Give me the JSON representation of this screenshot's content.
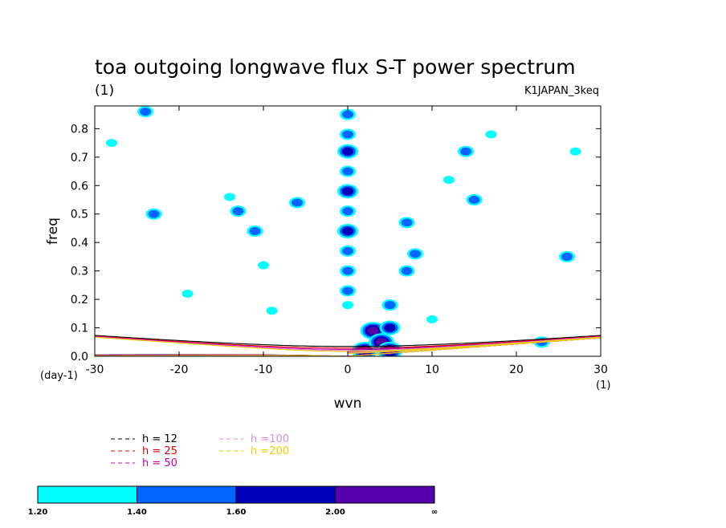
{
  "chart_data": {
    "type": "heatmap",
    "title": "toa outgoing longwave flux S-T power spectrum",
    "subtitle_left": "(1)",
    "subtitle_right": "K1JAPAN_3keq",
    "xlabel": "wvn",
    "ylabel": "freq",
    "x_unit": "(1)",
    "y_unit": "(day-1)",
    "xlim": [
      -30,
      30
    ],
    "ylim": [
      0,
      0.88
    ],
    "x_ticks": [
      -30,
      -20,
      -10,
      0,
      10,
      20,
      30
    ],
    "y_ticks": [
      0.0,
      0.1,
      0.2,
      0.3,
      0.4,
      0.5,
      0.6,
      0.7,
      0.8
    ],
    "x_tick_labels": [
      "-30",
      "-20",
      "-10",
      "0",
      "10",
      "20",
      "30"
    ],
    "y_tick_labels": [
      "0.0",
      "0.1",
      "0.2",
      "0.3",
      "0.4",
      "0.5",
      "0.6",
      "0.7",
      "0.8"
    ],
    "dispersion_curves": [
      {
        "name": "h = 12",
        "color": "#000000",
        "h": 12
      },
      {
        "name": "h = 25",
        "color": "#dd0000",
        "h": 25
      },
      {
        "name": "h = 50",
        "color": "#cc00aa",
        "h": 50
      },
      {
        "name": "h =100",
        "color": "#dd88dd",
        "h": 100
      },
      {
        "name": "h =200",
        "color": "#eecc00",
        "h": 200
      }
    ],
    "colorbar": {
      "levels": [
        "1.20",
        "1.40",
        "1.60",
        "2.00",
        "∞"
      ],
      "colors": [
        "#00ffff",
        "#0066ff",
        "#0000bb",
        "#5500aa"
      ]
    },
    "power_patches": [
      {
        "x": 0,
        "y": 0.85,
        "level": 2
      },
      {
        "x": 0,
        "y": 0.78,
        "level": 2
      },
      {
        "x": 0,
        "y": 0.72,
        "level": 3
      },
      {
        "x": 0,
        "y": 0.65,
        "level": 2
      },
      {
        "x": 0,
        "y": 0.58,
        "level": 3
      },
      {
        "x": 0,
        "y": 0.51,
        "level": 2
      },
      {
        "x": 0,
        "y": 0.44,
        "level": 3
      },
      {
        "x": 0,
        "y": 0.37,
        "level": 2
      },
      {
        "x": 0,
        "y": 0.3,
        "level": 2
      },
      {
        "x": 0,
        "y": 0.23,
        "level": 2
      },
      {
        "x": 0,
        "y": 0.18,
        "level": 1
      },
      {
        "x": 2,
        "y": 0.02,
        "level": 4
      },
      {
        "x": 3,
        "y": 0.09,
        "level": 4
      },
      {
        "x": 4,
        "y": 0.05,
        "level": 4
      },
      {
        "x": 5,
        "y": 0.02,
        "level": 4
      },
      {
        "x": 5,
        "y": 0.1,
        "level": 3
      },
      {
        "x": 5,
        "y": 0.18,
        "level": 2
      },
      {
        "x": 7,
        "y": 0.3,
        "level": 2
      },
      {
        "x": 8,
        "y": 0.36,
        "level": 2
      },
      {
        "x": 7,
        "y": 0.47,
        "level": 2
      },
      {
        "x": 14,
        "y": 0.72,
        "level": 2
      },
      {
        "x": 15,
        "y": 0.55,
        "level": 2
      },
      {
        "x": 12,
        "y": 0.62,
        "level": 1
      },
      {
        "x": 17,
        "y": 0.78,
        "level": 1
      },
      {
        "x": -13,
        "y": 0.51,
        "level": 2
      },
      {
        "x": -14,
        "y": 0.56,
        "level": 1
      },
      {
        "x": -11,
        "y": 0.44,
        "level": 2
      },
      {
        "x": -10,
        "y": 0.32,
        "level": 1
      },
      {
        "x": -24,
        "y": 0.86,
        "level": 2
      },
      {
        "x": -23,
        "y": 0.5,
        "level": 2
      },
      {
        "x": -6,
        "y": 0.54,
        "level": 2
      },
      {
        "x": -9,
        "y": 0.16,
        "level": 1
      },
      {
        "x": 23,
        "y": 0.05,
        "level": 2
      },
      {
        "x": 26,
        "y": 0.35,
        "level": 2
      },
      {
        "x": 10,
        "y": 0.13,
        "level": 1
      },
      {
        "x": -19,
        "y": 0.22,
        "level": 1
      },
      {
        "x": -28,
        "y": 0.75,
        "level": 1
      },
      {
        "x": 27,
        "y": 0.72,
        "level": 1
      }
    ]
  }
}
